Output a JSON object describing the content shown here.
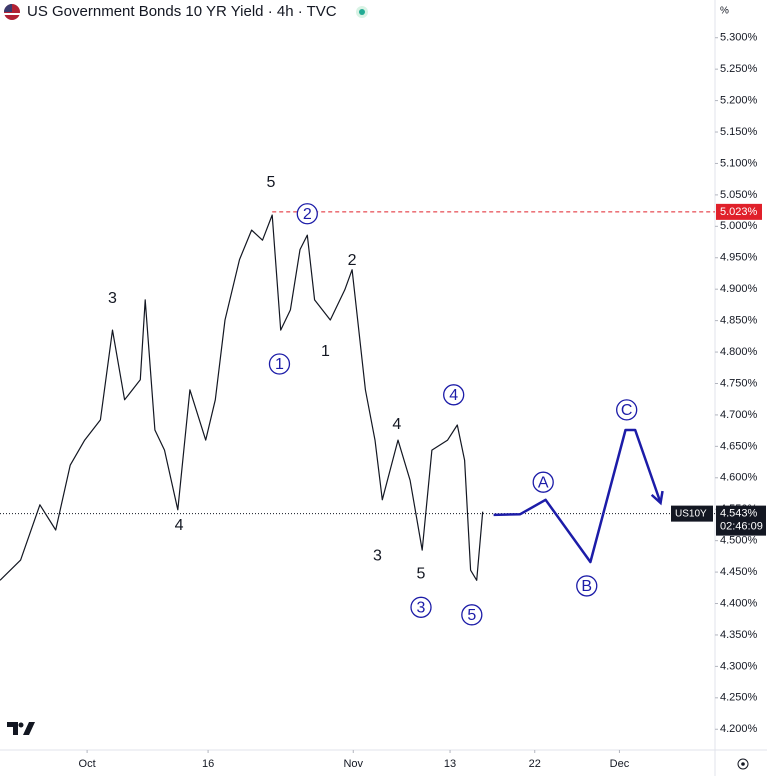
{
  "chart_data": {
    "type": "line",
    "title": "US Government Bonds 10 YR Yield · 4h · TVC",
    "y_unit": "%",
    "xlim": [
      -7.2,
      51.9
    ],
    "ylim": [
      4.167,
      5.36
    ],
    "xticks": [
      {
        "value": 0,
        "label": "Oct"
      },
      {
        "value": 10,
        "label": "16"
      },
      {
        "value": 22,
        "label": "Nov"
      },
      {
        "value": 30,
        "label": "13"
      },
      {
        "value": 37,
        "label": "22"
      },
      {
        "value": 44,
        "label": "Dec"
      }
    ],
    "yticks": [
      {
        "value": 5.3,
        "label": "5.300%"
      },
      {
        "value": 5.25,
        "label": "5.250%"
      },
      {
        "value": 5.2,
        "label": "5.200%"
      },
      {
        "value": 5.15,
        "label": "5.150%"
      },
      {
        "value": 5.1,
        "label": "5.100%"
      },
      {
        "value": 5.05,
        "label": "5.050%"
      },
      {
        "value": 5.0,
        "label": "5.000%"
      },
      {
        "value": 4.95,
        "label": "4.950%"
      },
      {
        "value": 4.9,
        "label": "4.900%"
      },
      {
        "value": 4.85,
        "label": "4.850%"
      },
      {
        "value": 4.8,
        "label": "4.800%"
      },
      {
        "value": 4.75,
        "label": "4.750%"
      },
      {
        "value": 4.7,
        "label": "4.700%"
      },
      {
        "value": 4.65,
        "label": "4.650%"
      },
      {
        "value": 4.6,
        "label": "4.600%"
      },
      {
        "value": 4.55,
        "label": "4.550%"
      },
      {
        "value": 4.5,
        "label": "4.500%"
      },
      {
        "value": 4.45,
        "label": "4.450%"
      },
      {
        "value": 4.4,
        "label": "4.400%"
      },
      {
        "value": 4.35,
        "label": "4.350%"
      },
      {
        "value": 4.3,
        "label": "4.300%"
      },
      {
        "value": 4.25,
        "label": "4.250%"
      },
      {
        "value": 4.2,
        "label": "4.200%"
      }
    ],
    "series": [
      {
        "name": "US10Y",
        "color": "#131722",
        "x": [
          -7.2,
          -5.5,
          -3.9,
          -2.6,
          -1.4,
          -0.2,
          1.1,
          2.1,
          3.1,
          4.4,
          4.8,
          5.6,
          6.4,
          7.5,
          8.5,
          9.8,
          10.6,
          11.4,
          12.6,
          13.6,
          14.5,
          15.3,
          16.0,
          16.8,
          17.6,
          18.2,
          18.8,
          20.1,
          21.3,
          21.9,
          23.0,
          23.8,
          24.4,
          25.7,
          26.7,
          27.7,
          28.5,
          29.8,
          30.6,
          31.2,
          31.7,
          32.2,
          32.7
        ],
        "values": [
          4.437,
          4.469,
          4.557,
          4.517,
          4.62,
          4.66,
          4.692,
          4.835,
          4.724,
          4.756,
          4.883,
          4.676,
          4.644,
          4.549,
          4.74,
          4.66,
          4.724,
          4.851,
          4.947,
          4.994,
          4.978,
          5.018,
          4.835,
          4.867,
          4.963,
          4.986,
          4.883,
          4.851,
          4.899,
          4.931,
          4.74,
          4.66,
          4.565,
          4.66,
          4.596,
          4.485,
          4.644,
          4.66,
          4.684,
          4.628,
          4.453,
          4.437,
          4.546
        ]
      },
      {
        "name": "Projection",
        "color": "#1c1ca8",
        "x": [
          33.6,
          35.8,
          37.9,
          41.6,
          44.5,
          45.3,
          47.4
        ],
        "values": [
          4.541,
          4.542,
          4.565,
          4.466,
          4.676,
          4.676,
          4.56
        ]
      }
    ],
    "reference_line": {
      "value": 5.023,
      "label": "5.023%",
      "color": "#e0202a"
    },
    "last_price": {
      "value": 4.543,
      "label": "4.543%",
      "symbol": "US10Y",
      "countdown": "02:46:09"
    },
    "annotations": [
      {
        "text": "5",
        "x": 15.2,
        "y": 5.071,
        "circled": false
      },
      {
        "text": "2",
        "x": 18.2,
        "y": 5.02,
        "circled": true
      },
      {
        "text": "3",
        "x": 2.1,
        "y": 4.886,
        "circled": false
      },
      {
        "text": "1",
        "x": 15.9,
        "y": 4.781,
        "circled": true
      },
      {
        "text": "1",
        "x": 19.7,
        "y": 4.802,
        "circled": false
      },
      {
        "text": "2",
        "x": 21.9,
        "y": 4.947,
        "circled": false
      },
      {
        "text": "4",
        "x": 7.6,
        "y": 4.525,
        "circled": false
      },
      {
        "text": "4",
        "x": 30.3,
        "y": 4.732,
        "circled": true
      },
      {
        "text": "4",
        "x": 25.6,
        "y": 4.686,
        "circled": false
      },
      {
        "text": "3",
        "x": 24.0,
        "y": 4.477,
        "circled": false
      },
      {
        "text": "5",
        "x": 27.6,
        "y": 4.448,
        "circled": false
      },
      {
        "text": "3",
        "x": 27.6,
        "y": 4.394,
        "circled": true
      },
      {
        "text": "5",
        "x": 31.8,
        "y": 4.382,
        "circled": true
      },
      {
        "text": "A",
        "x": 37.7,
        "y": 4.593,
        "circled": true
      },
      {
        "text": "B",
        "x": 41.3,
        "y": 4.428,
        "circled": true
      },
      {
        "text": "C",
        "x": 44.6,
        "y": 4.708,
        "circled": true
      }
    ]
  }
}
